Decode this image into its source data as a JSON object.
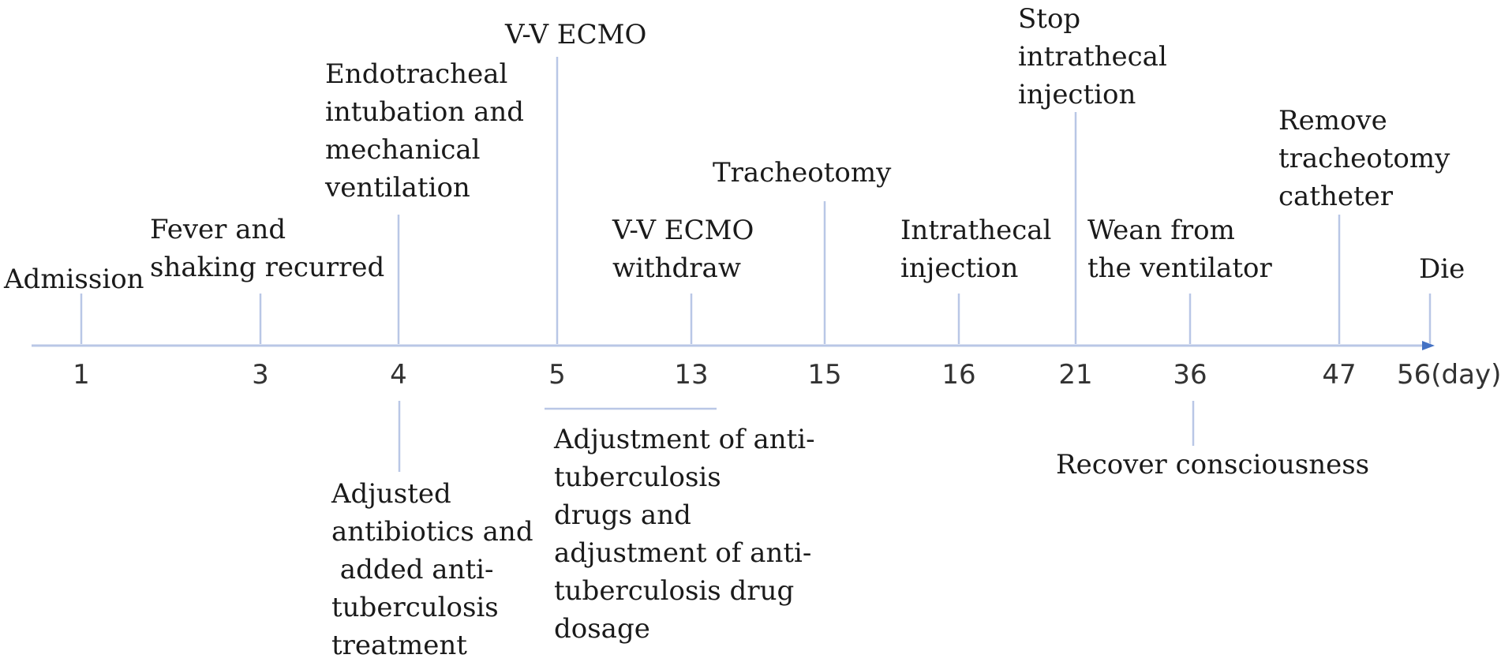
{
  "colors": {
    "line": "#b9c7e6",
    "arrow": "#4472c4",
    "text": "#1a1a1a",
    "tick_text": "#333333"
  },
  "unit_label": "(day)",
  "days": [
    "1",
    "3",
    "4",
    "5",
    "13",
    "15",
    "16",
    "21",
    "36",
    "47",
    "56"
  ],
  "events_above": [
    {
      "day": "1",
      "lines": [
        "Admission"
      ]
    },
    {
      "day": "3",
      "lines": [
        "Fever and",
        "shaking recurred"
      ]
    },
    {
      "day": "4",
      "lines": [
        "Endotracheal",
        "intubation and",
        "mechanical",
        "ventilation"
      ]
    },
    {
      "day": "5",
      "lines": [
        "V-V ECMO"
      ]
    },
    {
      "day": "13",
      "lines": [
        "V-V ECMO",
        "withdraw"
      ]
    },
    {
      "day": "15",
      "lines": [
        "Tracheotomy"
      ]
    },
    {
      "day": "16",
      "lines": [
        "Intrathecal",
        "injection"
      ]
    },
    {
      "day": "21",
      "lines": [
        "Stop",
        "intrathecal",
        "injection"
      ]
    },
    {
      "day": "36",
      "lines": [
        "Wean from",
        "the ventilator"
      ]
    },
    {
      "day": "47",
      "lines": [
        "Remove",
        "tracheotomy",
        "catheter"
      ]
    },
    {
      "day": "56",
      "lines": [
        "Die"
      ]
    }
  ],
  "events_below": [
    {
      "day": "4",
      "lines": [
        "Adjusted",
        "antibiotics and",
        " added anti-",
        "tuberculosis",
        "treatment"
      ]
    },
    {
      "day": "5-13",
      "lines": [
        "Adjustment of anti-",
        "tuberculosis",
        "drugs and",
        "adjustment of anti-",
        "tuberculosis drug",
        "dosage"
      ]
    },
    {
      "day": "36",
      "lines": [
        "Recover consciousness"
      ]
    }
  ]
}
